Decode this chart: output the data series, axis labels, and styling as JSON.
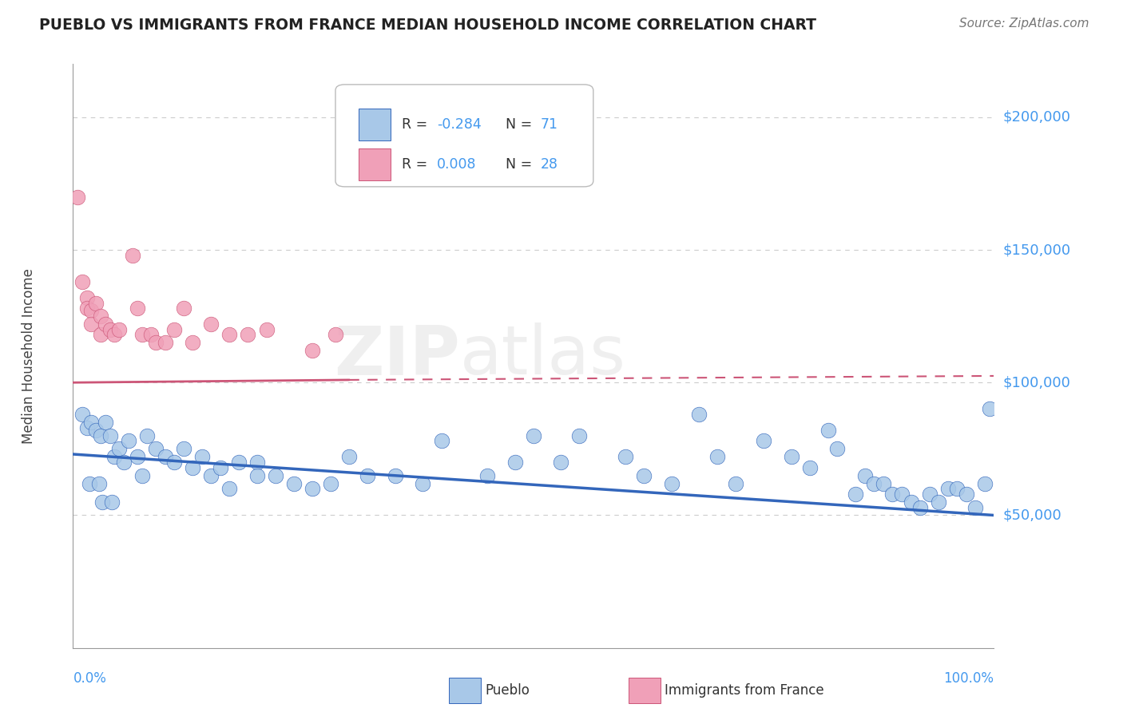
{
  "title": "PUEBLO VS IMMIGRANTS FROM FRANCE MEDIAN HOUSEHOLD INCOME CORRELATION CHART",
  "source": "Source: ZipAtlas.com",
  "ylabel": "Median Household Income",
  "color1": "#a8c8e8",
  "color2": "#f0a0b8",
  "trend_color1": "#3366bb",
  "trend_color2": "#cc5577",
  "axis_color": "#4499ee",
  "grid_color": "#cccccc",
  "title_color": "#222222",
  "source_color": "#777777",
  "label1": "Pueblo",
  "label2": "Immigrants from France",
  "R1_text": "R = ",
  "R1_val": "-0.284",
  "N1_text": "N = ",
  "N1_val": "71",
  "R2_text": "R = ",
  "R2_val": "0.008",
  "N2_text": "N = ",
  "N2_val": "28",
  "xlim": [
    0,
    100
  ],
  "ylim": [
    0,
    220000
  ],
  "ytick_vals": [
    50000,
    100000,
    150000,
    200000
  ],
  "ytick_labels": [
    "$50,000",
    "$100,000",
    "$150,000",
    "$200,000"
  ],
  "blue_trend_x0": 0,
  "blue_trend_y0": 73000,
  "blue_trend_x1": 100,
  "blue_trend_y1": 50000,
  "pink_solid_x0": 0,
  "pink_solid_y0": 100000,
  "pink_solid_x1": 30,
  "pink_solid_y1": 101000,
  "pink_dash_x0": 30,
  "pink_dash_y0": 101000,
  "pink_dash_x1": 100,
  "pink_dash_y1": 102500,
  "pueblo_x": [
    1.0,
    1.5,
    2.0,
    2.5,
    3.0,
    3.5,
    4.0,
    4.5,
    5.0,
    5.5,
    6.0,
    7.0,
    7.5,
    8.0,
    9.0,
    10.0,
    11.0,
    12.0,
    13.0,
    14.0,
    15.0,
    16.0,
    17.0,
    18.0,
    20.0,
    20.0,
    22.0,
    24.0,
    26.0,
    28.0,
    30.0,
    32.0,
    35.0,
    38.0,
    40.0,
    45.0,
    48.0,
    50.0,
    53.0,
    60.0,
    62.0,
    65.0,
    68.0,
    70.0,
    72.0,
    75.0,
    78.0,
    80.0,
    82.0,
    83.0,
    85.0,
    86.0,
    87.0,
    88.0,
    89.0,
    90.0,
    91.0,
    92.0,
    93.0,
    94.0,
    95.0,
    96.0,
    97.0,
    98.0,
    99.0,
    99.5,
    1.8,
    2.8,
    3.2,
    4.2,
    55.0
  ],
  "pueblo_y": [
    88000,
    83000,
    85000,
    82000,
    80000,
    85000,
    80000,
    72000,
    75000,
    70000,
    78000,
    72000,
    65000,
    80000,
    75000,
    72000,
    70000,
    75000,
    68000,
    72000,
    65000,
    68000,
    60000,
    70000,
    70000,
    65000,
    65000,
    62000,
    60000,
    62000,
    72000,
    65000,
    65000,
    62000,
    78000,
    65000,
    70000,
    80000,
    70000,
    72000,
    65000,
    62000,
    88000,
    72000,
    62000,
    78000,
    72000,
    68000,
    82000,
    75000,
    58000,
    65000,
    62000,
    62000,
    58000,
    58000,
    55000,
    53000,
    58000,
    55000,
    60000,
    60000,
    58000,
    53000,
    62000,
    90000,
    62000,
    62000,
    55000,
    55000,
    80000
  ],
  "france_x": [
    0.5,
    1.0,
    1.5,
    1.5,
    2.0,
    2.0,
    2.5,
    3.0,
    3.0,
    3.5,
    4.0,
    4.5,
    5.0,
    6.5,
    7.0,
    7.5,
    8.5,
    9.0,
    10.0,
    11.0,
    12.0,
    13.0,
    15.0,
    17.0,
    19.0,
    21.0,
    26.0,
    28.5
  ],
  "france_y": [
    170000,
    138000,
    132000,
    128000,
    127000,
    122000,
    130000,
    118000,
    125000,
    122000,
    120000,
    118000,
    120000,
    148000,
    128000,
    118000,
    118000,
    115000,
    115000,
    120000,
    128000,
    115000,
    122000,
    118000,
    118000,
    120000,
    112000,
    118000
  ]
}
